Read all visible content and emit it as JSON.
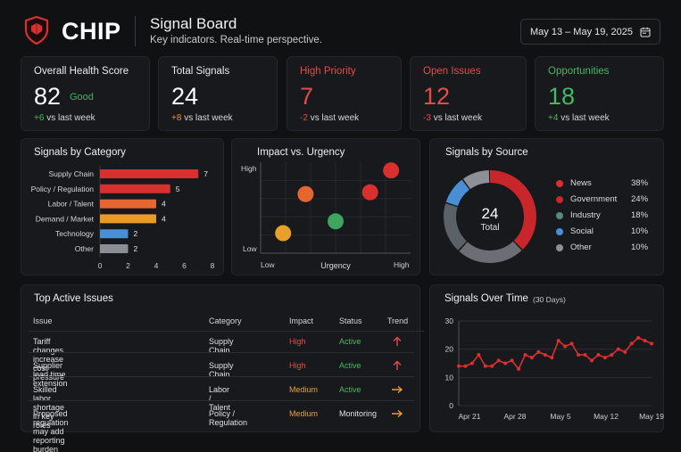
{
  "header": {
    "brand": "CHIP",
    "title": "Signal Board",
    "subtitle": "Key indicators. Real-time perspective.",
    "date_range": "May 13 – May 19, 2025"
  },
  "colors": {
    "accent_red": "#e54b4b",
    "accent_green": "#45b865",
    "accent_orange": "#e8913a",
    "card_bg": "#17191c"
  },
  "kpis": [
    {
      "label": "Overall Health Score",
      "value": "82",
      "badge": "Good",
      "delta": "+6",
      "delta_suffix": "vs last week"
    },
    {
      "label": "Total Signals",
      "value": "24",
      "delta": "+8",
      "delta_suffix": "vs last week"
    },
    {
      "label": "High Priority",
      "value": "7",
      "delta": "-2",
      "delta_suffix": "vs last week"
    },
    {
      "label": "Open Issues",
      "value": "12",
      "delta": "-3",
      "delta_suffix": "vs last week"
    },
    {
      "label": "Opportunities",
      "value": "18",
      "delta": "+4",
      "delta_suffix": "vs last week"
    }
  ],
  "chart_data": [
    {
      "type": "bar",
      "title": "Signals by Category",
      "orientation": "horizontal",
      "categories": [
        "Supply Chain",
        "Policy / Regulation",
        "Labor / Talent",
        "Demand / Market",
        "Technology",
        "Other"
      ],
      "values": [
        7,
        5,
        4,
        4,
        2,
        2
      ],
      "colors": [
        "#d9302f",
        "#d9302f",
        "#e5662e",
        "#e89b2a",
        "#4a8fd6",
        "#8a8f96"
      ],
      "xticks": [
        "0",
        "2",
        "4",
        "6",
        "8"
      ],
      "xlim": [
        0,
        8
      ]
    },
    {
      "type": "scatter",
      "title": "Impact vs. Urgency",
      "xlabel": "Urgency",
      "ylabel_high": "High",
      "ylabel_low": "Low",
      "xlabel_low": "Low",
      "xlabel_high": "High",
      "xlim": [
        0,
        10
      ],
      "ylim": [
        0,
        10
      ],
      "points": [
        {
          "x": 1.5,
          "y": 2.2,
          "color": "#e8a02a"
        },
        {
          "x": 3.0,
          "y": 6.5,
          "color": "#e5662e"
        },
        {
          "x": 5.0,
          "y": 3.5,
          "color": "#3fa45e"
        },
        {
          "x": 7.3,
          "y": 6.7,
          "color": "#d9302f"
        },
        {
          "x": 8.7,
          "y": 9.1,
          "color": "#d9302f"
        }
      ]
    },
    {
      "type": "pie",
      "title": "Signals by Source",
      "center_value": "24",
      "center_label": "Total",
      "slices": [
        {
          "name": "News",
          "pct": "38%",
          "value": 38,
          "color": "#c8262a"
        },
        {
          "name": "Government",
          "pct": "24%",
          "value": 24,
          "color": "#6b6f75"
        },
        {
          "name": "Industry",
          "pct": "18%",
          "value": 18,
          "color": "#5a6268"
        },
        {
          "name": "Social",
          "pct": "10%",
          "value": 10,
          "color": "#4a8fd6"
        },
        {
          "name": "Other",
          "pct": "10%",
          "value": 10,
          "color": "#8d9197"
        }
      ],
      "legend_colors": [
        "#d9302f",
        "#c8262a",
        "#5a8a7a",
        "#4a8fd6",
        "#8d9197"
      ]
    },
    {
      "type": "line",
      "title": "Signals Over Time",
      "subtitle": "(30 Days)",
      "color": "#d9302f",
      "ylim": [
        0,
        30
      ],
      "yticks": [
        "0",
        "10",
        "20",
        "30"
      ],
      "xtick_labels": [
        "Apr 21",
        "Apr 28",
        "May 5",
        "May 12",
        "May 19"
      ],
      "values": [
        14,
        14,
        15,
        18,
        14,
        14,
        16,
        15,
        16,
        13,
        18,
        17,
        19,
        18,
        17,
        23,
        21,
        22,
        18,
        18,
        16,
        18,
        17,
        18,
        20,
        19,
        22,
        24,
        23,
        22
      ]
    }
  ],
  "issues": {
    "title": "Top Active Issues",
    "columns": [
      "Issue",
      "Category",
      "Impact",
      "Status",
      "Trend"
    ],
    "rows": [
      {
        "issue": "Tariff changes increase cost pressure",
        "category": "Supply Chain",
        "impact": "High",
        "status": "Active",
        "trend": "up"
      },
      {
        "issue": "Supplier lead time extension",
        "category": "Supply Chain",
        "impact": "High",
        "status": "Active",
        "trend": "up"
      },
      {
        "issue": "Skilled labor shortage in key roles",
        "category": "Labor / Talent",
        "impact": "Medium",
        "status": "Active",
        "trend": "right"
      },
      {
        "issue": "Proposed regulation may add reporting burden",
        "category": "Policy / Regulation",
        "impact": "Medium",
        "status": "Monitoring",
        "trend": "right"
      }
    ]
  }
}
